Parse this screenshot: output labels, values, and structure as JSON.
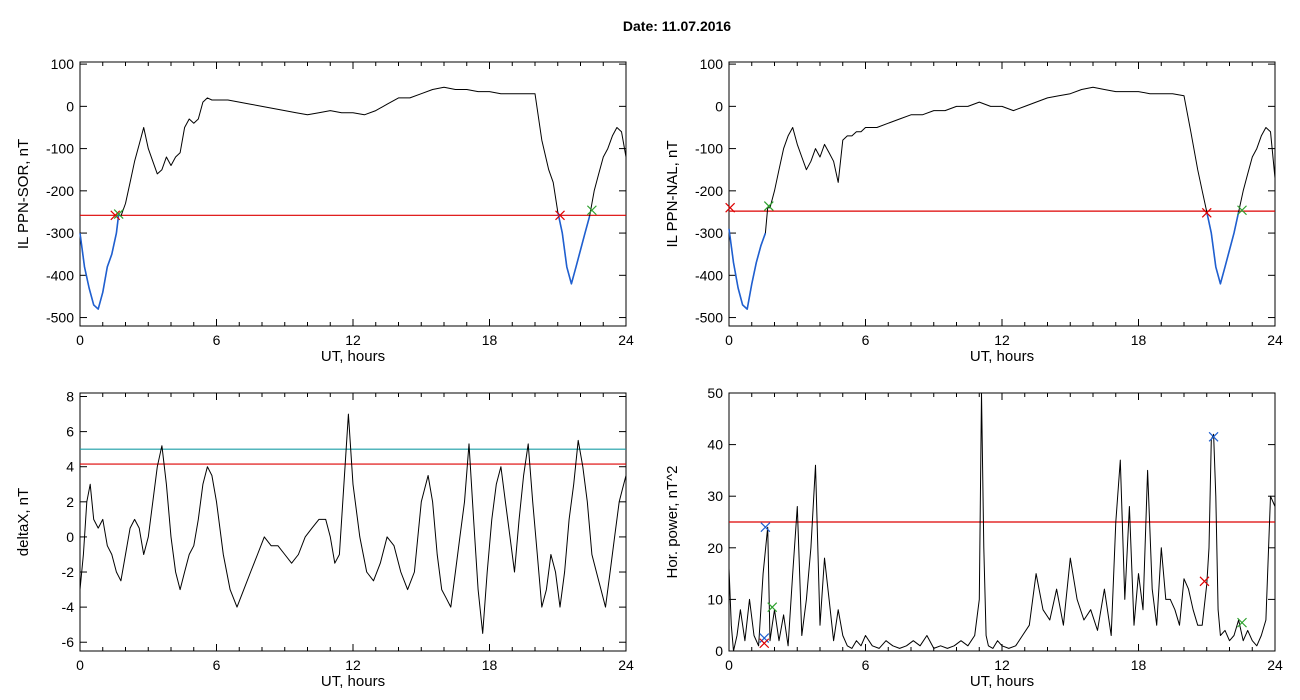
{
  "page": {
    "title": "Date:  11.07.2016"
  },
  "chart_data": [
    {
      "id": "sor",
      "type": "line",
      "xlabel": "UT, hours",
      "ylabel": "IL PPN-SOR, nT",
      "xlim": [
        0,
        24
      ],
      "ylim": [
        -520,
        105
      ],
      "xticks": [
        0,
        6,
        12,
        18,
        24
      ],
      "yticks": [
        -500,
        -400,
        -300,
        -200,
        -100,
        0,
        100
      ],
      "threshold": {
        "value": -258,
        "color": "#dd0000"
      },
      "series": [
        {
          "color": "#000000",
          "x": [
            0,
            0.2,
            0.4,
            0.6,
            0.8,
            1.0,
            1.2,
            1.4,
            1.6,
            1.7,
            1.8,
            2.0,
            2.2,
            2.4,
            2.6,
            2.8,
            3.0,
            3.2,
            3.4,
            3.6,
            3.8,
            4.0,
            4.2,
            4.4,
            4.6,
            4.8,
            5.0,
            5.2,
            5.4,
            5.6,
            5.8,
            6.0,
            6.5,
            7.0,
            7.5,
            8.0,
            8.5,
            9.0,
            9.5,
            10.0,
            10.5,
            11.0,
            11.5,
            12.0,
            12.5,
            13.0,
            13.5,
            14.0,
            14.5,
            15.0,
            15.5,
            16.0,
            16.5,
            17.0,
            17.5,
            18.0,
            18.5,
            19.0,
            19.5,
            20.0,
            20.3,
            20.6,
            20.8,
            21.0,
            21.2,
            21.4,
            21.6,
            21.8,
            22.0,
            22.2,
            22.4,
            22.6,
            22.8,
            23.0,
            23.2,
            23.4,
            23.6,
            23.8,
            24.0
          ],
          "values": [
            -300,
            -380,
            -430,
            -470,
            -480,
            -440,
            -380,
            -350,
            -300,
            -255,
            -260,
            -230,
            -180,
            -130,
            -90,
            -50,
            -100,
            -130,
            -160,
            -150,
            -120,
            -140,
            -120,
            -110,
            -50,
            -30,
            -40,
            -30,
            10,
            20,
            15,
            15,
            15,
            10,
            5,
            0,
            -5,
            -10,
            -15,
            -20,
            -15,
            -10,
            -15,
            -15,
            -20,
            -10,
            5,
            20,
            20,
            30,
            40,
            45,
            40,
            40,
            35,
            35,
            30,
            30,
            30,
            30,
            -80,
            -150,
            -180,
            -250,
            -300,
            -380,
            -420,
            -380,
            -340,
            -300,
            -260,
            -200,
            -160,
            -120,
            -100,
            -70,
            -50,
            -60,
            -120
          ]
        },
        {
          "color": "#1f5fd0",
          "x": [
            0,
            0.2,
            0.4,
            0.6,
            0.8,
            1.0,
            1.2,
            1.4,
            1.6,
            1.7
          ],
          "values": [
            -300,
            -380,
            -430,
            -470,
            -480,
            -440,
            -380,
            -350,
            -300,
            -255
          ]
        },
        {
          "color": "#1f5fd0",
          "x": [
            21.0,
            21.2,
            21.4,
            21.6,
            21.8,
            22.0,
            22.2,
            22.4
          ],
          "values": [
            -250,
            -300,
            -380,
            -420,
            -380,
            -340,
            -300,
            -260
          ]
        }
      ],
      "markers": [
        {
          "x": 1.55,
          "y": -258,
          "color": "#dd0000"
        },
        {
          "x": 1.7,
          "y": -255,
          "color": "#2ca02c"
        },
        {
          "x": 21.1,
          "y": -258,
          "color": "#dd0000"
        },
        {
          "x": 22.5,
          "y": -246,
          "color": "#2ca02c"
        }
      ]
    },
    {
      "id": "nal",
      "type": "line",
      "xlabel": "UT, hours",
      "ylabel": "IL PPN-NAL, nT",
      "xlim": [
        0,
        24
      ],
      "ylim": [
        -520,
        105
      ],
      "xticks": [
        0,
        6,
        12,
        18,
        24
      ],
      "yticks": [
        -500,
        -400,
        -300,
        -200,
        -100,
        0,
        100
      ],
      "threshold": {
        "value": -248,
        "color": "#dd0000"
      },
      "series": [
        {
          "color": "#000000",
          "x": [
            0,
            0.2,
            0.4,
            0.6,
            0.8,
            1.0,
            1.2,
            1.4,
            1.6,
            1.7,
            1.8,
            2.0,
            2.2,
            2.4,
            2.6,
            2.8,
            3.0,
            3.2,
            3.4,
            3.6,
            3.8,
            4.0,
            4.2,
            4.4,
            4.6,
            4.8,
            5.0,
            5.2,
            5.4,
            5.6,
            5.8,
            6.0,
            6.5,
            7.0,
            7.5,
            8.0,
            8.5,
            9.0,
            9.5,
            10.0,
            10.5,
            11.0,
            11.5,
            12.0,
            12.5,
            13.0,
            13.5,
            14.0,
            14.5,
            15.0,
            15.5,
            16.0,
            16.5,
            17.0,
            17.5,
            18.0,
            18.5,
            19.0,
            19.5,
            20.0,
            20.3,
            20.6,
            20.8,
            21.0,
            21.2,
            21.4,
            21.6,
            21.8,
            22.0,
            22.2,
            22.4,
            22.6,
            22.8,
            23.0,
            23.2,
            23.4,
            23.6,
            23.8,
            24.0
          ],
          "values": [
            -290,
            -370,
            -430,
            -470,
            -480,
            -420,
            -370,
            -330,
            -300,
            -240,
            -240,
            -200,
            -150,
            -100,
            -70,
            -50,
            -90,
            -120,
            -150,
            -130,
            -100,
            -120,
            -90,
            -110,
            -130,
            -180,
            -80,
            -70,
            -70,
            -60,
            -60,
            -50,
            -50,
            -40,
            -30,
            -20,
            -20,
            -10,
            -10,
            0,
            0,
            10,
            0,
            0,
            -10,
            0,
            10,
            20,
            25,
            30,
            40,
            45,
            40,
            35,
            35,
            35,
            30,
            30,
            30,
            25,
            -60,
            -150,
            -200,
            -250,
            -300,
            -380,
            -420,
            -380,
            -340,
            -300,
            -250,
            -200,
            -160,
            -120,
            -100,
            -70,
            -50,
            -60,
            -170
          ]
        },
        {
          "color": "#1f5fd0",
          "x": [
            0,
            0.2,
            0.4,
            0.6,
            0.8,
            1.0,
            1.2,
            1.4,
            1.6
          ],
          "values": [
            -290,
            -370,
            -430,
            -470,
            -480,
            -420,
            -370,
            -330,
            -300
          ]
        },
        {
          "color": "#1f5fd0",
          "x": [
            21.0,
            21.2,
            21.4,
            21.6,
            21.8,
            22.0,
            22.2,
            22.4
          ],
          "values": [
            -250,
            -300,
            -380,
            -420,
            -380,
            -340,
            -300,
            -250
          ]
        }
      ],
      "markers": [
        {
          "x": 0.05,
          "y": -240,
          "color": "#dd0000"
        },
        {
          "x": 1.75,
          "y": -236,
          "color": "#2ca02c"
        },
        {
          "x": 21.0,
          "y": -252,
          "color": "#dd0000"
        },
        {
          "x": 22.55,
          "y": -246,
          "color": "#2ca02c"
        }
      ]
    },
    {
      "id": "deltax",
      "type": "line",
      "xlabel": "UT, hours",
      "ylabel": "deltaX, nT",
      "xlim": [
        0,
        24
      ],
      "ylim": [
        -6.5,
        8.2
      ],
      "xticks": [
        0,
        6,
        12,
        18,
        24
      ],
      "yticks": [
        -6,
        -4,
        -2,
        0,
        2,
        4,
        6,
        8
      ],
      "thresholds": [
        {
          "value": 5.0,
          "color": "#1a9ea6"
        },
        {
          "value": 4.15,
          "color": "#dd0000"
        }
      ],
      "series": [
        {
          "color": "#000000",
          "x": [
            0,
            0.15,
            0.3,
            0.45,
            0.6,
            0.8,
            1.0,
            1.2,
            1.4,
            1.6,
            1.8,
            2.0,
            2.2,
            2.4,
            2.6,
            2.8,
            3.0,
            3.2,
            3.4,
            3.6,
            3.8,
            4.0,
            4.2,
            4.4,
            4.6,
            4.8,
            5.0,
            5.2,
            5.4,
            5.6,
            5.8,
            6.0,
            6.3,
            6.6,
            6.9,
            7.2,
            7.5,
            7.8,
            8.1,
            8.4,
            8.7,
            9.0,
            9.3,
            9.6,
            9.9,
            10.2,
            10.5,
            10.8,
            11.0,
            11.2,
            11.4,
            11.6,
            11.8,
            12.0,
            12.3,
            12.6,
            12.9,
            13.2,
            13.5,
            13.8,
            14.1,
            14.4,
            14.7,
            15.0,
            15.3,
            15.5,
            15.7,
            15.9,
            16.1,
            16.3,
            16.5,
            16.7,
            16.9,
            17.1,
            17.3,
            17.5,
            17.7,
            17.9,
            18.1,
            18.3,
            18.5,
            18.7,
            18.9,
            19.1,
            19.3,
            19.5,
            19.7,
            19.9,
            20.1,
            20.3,
            20.5,
            20.7,
            20.9,
            21.1,
            21.3,
            21.5,
            21.7,
            21.9,
            22.1,
            22.3,
            22.5,
            22.7,
            22.9,
            23.1,
            23.3,
            23.5,
            23.7,
            23.9,
            24.0
          ],
          "values": [
            -3,
            -1,
            2,
            3,
            1,
            0.5,
            1,
            -0.5,
            -1,
            -2,
            -2.5,
            -1,
            0.5,
            1,
            0.5,
            -1,
            0,
            2,
            4,
            5.2,
            3,
            0,
            -2,
            -3,
            -2,
            -1,
            -0.5,
            1,
            3,
            4,
            3.5,
            2,
            -1,
            -3,
            -4,
            -3,
            -2,
            -1,
            0,
            -0.5,
            -0.5,
            -1,
            -1.5,
            -1,
            0,
            0.5,
            1,
            1,
            0,
            -1.5,
            -1,
            3,
            7,
            3,
            0,
            -2,
            -2.5,
            -1.5,
            0,
            -0.5,
            -2,
            -3,
            -2,
            2,
            3.5,
            2,
            -1,
            -3,
            -3.5,
            -4,
            -2,
            0,
            2,
            5.3,
            1,
            -3,
            -5.5,
            -2,
            1,
            3,
            4,
            2,
            0,
            -2,
            1,
            3.5,
            5.3,
            2,
            -1,
            -4,
            -3,
            -1,
            -2,
            -4,
            -2,
            1,
            3,
            5.5,
            4,
            2,
            -1,
            -2,
            -3,
            -4,
            -2,
            0,
            2,
            3,
            3.5
          ]
        }
      ],
      "markers": []
    },
    {
      "id": "power",
      "type": "line",
      "xlabel": "UT, hours",
      "ylabel": "Hor. power, nT^2",
      "xlim": [
        0,
        24
      ],
      "ylim": [
        0,
        50
      ],
      "xticks": [
        0,
        6,
        12,
        18,
        24
      ],
      "yticks": [
        0,
        10,
        20,
        30,
        40,
        50
      ],
      "threshold": {
        "value": 25,
        "color": "#dd0000"
      },
      "series": [
        {
          "color": "#000000",
          "x": [
            0,
            0.1,
            0.2,
            0.35,
            0.5,
            0.7,
            0.9,
            1.1,
            1.3,
            1.5,
            1.7,
            1.8,
            1.9,
            2.0,
            2.2,
            2.4,
            2.6,
            2.8,
            3.0,
            3.2,
            3.4,
            3.6,
            3.8,
            4.0,
            4.2,
            4.4,
            4.6,
            4.8,
            5.0,
            5.2,
            5.4,
            5.6,
            5.8,
            6.0,
            6.3,
            6.6,
            6.9,
            7.2,
            7.5,
            7.8,
            8.1,
            8.4,
            8.7,
            9.0,
            9.3,
            9.6,
            9.9,
            10.2,
            10.5,
            10.8,
            11.0,
            11.1,
            11.2,
            11.3,
            11.4,
            11.6,
            11.8,
            12.0,
            12.3,
            12.6,
            12.9,
            13.2,
            13.5,
            13.8,
            14.1,
            14.4,
            14.7,
            15.0,
            15.3,
            15.6,
            15.9,
            16.2,
            16.5,
            16.8,
            17.0,
            17.2,
            17.4,
            17.6,
            17.8,
            18.0,
            18.2,
            18.4,
            18.6,
            18.8,
            19.0,
            19.2,
            19.4,
            19.6,
            19.8,
            20.0,
            20.2,
            20.4,
            20.6,
            20.8,
            21.0,
            21.1,
            21.2,
            21.3,
            21.4,
            21.5,
            21.6,
            21.8,
            22.0,
            22.2,
            22.4,
            22.6,
            22.8,
            23.0,
            23.2,
            23.4,
            23.6,
            23.8,
            24.0
          ],
          "values": [
            16,
            5,
            0,
            3,
            8,
            2,
            10,
            3,
            1,
            15,
            24,
            2,
            5,
            8,
            2,
            7,
            1,
            15,
            28,
            3,
            10,
            20,
            36,
            5,
            18,
            10,
            2,
            8,
            3,
            1,
            0.5,
            2,
            1,
            3,
            1,
            0.5,
            2,
            1,
            0.5,
            1,
            2,
            1,
            3,
            0.5,
            1,
            0.5,
            1,
            2,
            1,
            3,
            10,
            50,
            20,
            3,
            1,
            0.5,
            2,
            1,
            0.5,
            1,
            3,
            5,
            15,
            8,
            6,
            12,
            5,
            18,
            10,
            6,
            8,
            4,
            12,
            3,
            25,
            37,
            10,
            28,
            5,
            15,
            8,
            35,
            12,
            5,
            20,
            10,
            10,
            8,
            5,
            14,
            12,
            8,
            5,
            5,
            13,
            20,
            41,
            42,
            30,
            8,
            3,
            4,
            2,
            3,
            6,
            2,
            4,
            2,
            1,
            3,
            6,
            30,
            28
          ]
        }
      ],
      "markers": [
        {
          "x": 1.6,
          "y": 24,
          "color": "#1f5fd0"
        },
        {
          "x": 1.55,
          "y": 2.5,
          "color": "#1f5fd0"
        },
        {
          "x": 1.55,
          "y": 1.5,
          "color": "#dd0000"
        },
        {
          "x": 1.9,
          "y": 8.5,
          "color": "#2ca02c"
        },
        {
          "x": 20.9,
          "y": 13.5,
          "color": "#dd0000"
        },
        {
          "x": 21.3,
          "y": 41.5,
          "color": "#1f5fd0"
        },
        {
          "x": 22.55,
          "y": 5.5,
          "color": "#2ca02c"
        }
      ]
    }
  ]
}
